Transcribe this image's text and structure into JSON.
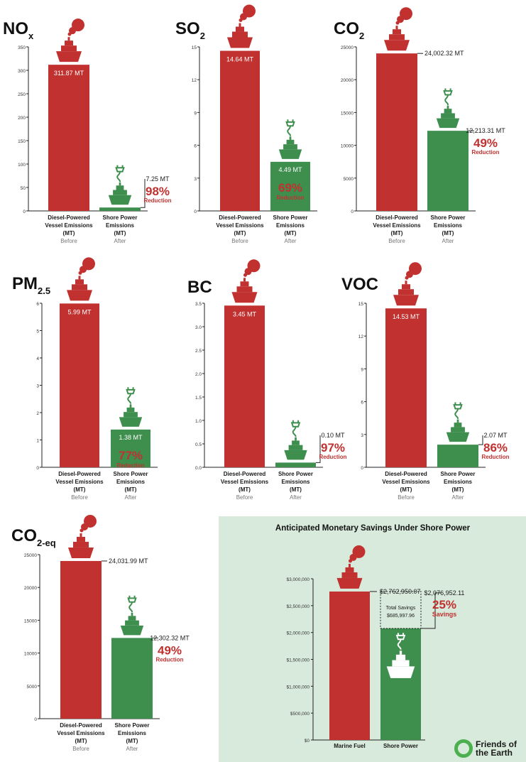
{
  "colors": {
    "diesel": "#c1312f",
    "shore": "#3e8e4e",
    "reduction_text": "#c1312f",
    "label": "#1a1a1a",
    "sublabel": "#777777",
    "panel_bg": "#d8eadb",
    "logo_green": "#4caf50"
  },
  "chart_data": [
    {
      "type": "bar",
      "title_main": "NO",
      "title_sub": "x",
      "categories": [
        "Diesel-Powered Vessel Emissions (MT)",
        "Shore Power Emissions (MT)"
      ],
      "category_lines": [
        [
          "Diesel-Powered",
          "Vessel Emissions",
          "(MT)"
        ],
        [
          "Shore Power",
          "Emissions",
          "(MT)"
        ]
      ],
      "sublabels": [
        "Before",
        "After"
      ],
      "values": [
        311.87,
        7.25
      ],
      "value_labels": [
        "311.87 MT",
        "7.25 MT"
      ],
      "reduction_pct": "98%",
      "reduction_label": "Reduction",
      "yticks": [
        0,
        50,
        100,
        150,
        200,
        250,
        300,
        350
      ],
      "tick_labels": [
        "0",
        "50",
        "100",
        "150",
        "200",
        "250",
        "300",
        "350"
      ],
      "ylim": [
        0,
        350
      ]
    },
    {
      "type": "bar",
      "title_main": "SO",
      "title_sub": "2",
      "categories": [
        "Diesel-Powered Vessel Emissions (MT)",
        "Shore Power Emissions (MT)"
      ],
      "category_lines": [
        [
          "Diesel-Powered",
          "Vessel Emissions",
          "(MT)"
        ],
        [
          "Shore Power",
          "Emissions",
          "(MT)"
        ]
      ],
      "sublabels": [
        "Before",
        "After"
      ],
      "values": [
        14.64,
        4.49
      ],
      "value_labels": [
        "14.64 MT",
        "4.49 MT"
      ],
      "reduction_pct": "69%",
      "reduction_label": "Reduction",
      "yticks": [
        0,
        3,
        6,
        9,
        12,
        15
      ],
      "tick_labels": [
        "0",
        "3",
        "6",
        "9",
        "12",
        "15"
      ],
      "ylim": [
        0,
        15
      ]
    },
    {
      "type": "bar",
      "title_main": "CO",
      "title_sub": "2",
      "categories": [
        "Diesel-Powered Vessel Emissions (MT)",
        "Shore Power Emissions (MT)"
      ],
      "category_lines": [
        [
          "Diesel-Powered",
          "Vessel Emissions",
          "(MT)"
        ],
        [
          "Shore Power",
          "Emissions",
          "(MT)"
        ]
      ],
      "sublabels": [
        "Before",
        "After"
      ],
      "values": [
        24002.32,
        12213.31
      ],
      "value_labels": [
        "24,002.32 MT",
        "12,213.31 MT"
      ],
      "reduction_pct": "49%",
      "reduction_label": "Reduction",
      "yticks": [
        0,
        5000,
        10000,
        15000,
        20000,
        25000
      ],
      "tick_labels": [
        "0",
        "5000",
        "10000",
        "15000",
        "20000",
        "25000"
      ],
      "ylim": [
        0,
        25000
      ]
    },
    {
      "type": "bar",
      "title_main": "PM",
      "title_sub": "2.5",
      "categories": [
        "Diesel-Powered Vessel Emissions (MT)",
        "Shore Power Emissions (MT)"
      ],
      "category_lines": [
        [
          "Diesel-Powered",
          "Vessel Emissions",
          "(MT)"
        ],
        [
          "Shore Power",
          "Emissions",
          "(MT)"
        ]
      ],
      "sublabels": [
        "Before",
        "After"
      ],
      "values": [
        5.99,
        1.38
      ],
      "value_labels": [
        "5.99 MT",
        "1.38 MT"
      ],
      "reduction_pct": "77%",
      "reduction_label": "Reduction",
      "yticks": [
        0,
        1,
        2,
        3,
        4,
        5,
        6
      ],
      "tick_labels": [
        "0",
        "1",
        "2",
        "3",
        "4",
        "5",
        "6"
      ],
      "ylim": [
        0,
        6
      ]
    },
    {
      "type": "bar",
      "title_main": "BC",
      "title_sub": "",
      "categories": [
        "Diesel-Powered Vessel Emissions (MT)",
        "Shore Power Emissions (MT)"
      ],
      "category_lines": [
        [
          "Diesel-Powered",
          "Vessel Emissions",
          "(MT)"
        ],
        [
          "Shore Power",
          "Emissions",
          "(MT)"
        ]
      ],
      "sublabels": [
        "Before",
        "After"
      ],
      "values": [
        3.45,
        0.1
      ],
      "value_labels": [
        "3.45 MT",
        "0.10 MT"
      ],
      "reduction_pct": "97%",
      "reduction_label": "Reduction",
      "yticks": [
        0,
        0.5,
        1,
        1.5,
        2,
        2.5,
        3,
        3.5
      ],
      "tick_labels": [
        "0.0",
        "0.5",
        "1.0",
        "1.5",
        "2.0",
        "2.5",
        "3.0",
        "3.5"
      ],
      "ylim": [
        0,
        3.5
      ]
    },
    {
      "type": "bar",
      "title_main": "VOC",
      "title_sub": "",
      "categories": [
        "Diesel-Powered Vessel Emissions (MT)",
        "Shore Power Emissions (MT)"
      ],
      "category_lines": [
        [
          "Diesel-Powered",
          "Vessel Emissions",
          "(MT)"
        ],
        [
          "Shore Power",
          "Emissions",
          "(MT)"
        ]
      ],
      "sublabels": [
        "Before",
        "After"
      ],
      "values": [
        14.53,
        2.07
      ],
      "value_labels": [
        "14.53 MT",
        "2.07 MT"
      ],
      "reduction_pct": "86%",
      "reduction_label": "Reduction",
      "yticks": [
        0,
        3,
        6,
        9,
        12,
        15
      ],
      "tick_labels": [
        "0",
        "3",
        "6",
        "9",
        "12",
        "15"
      ],
      "ylim": [
        0,
        15
      ]
    },
    {
      "type": "bar",
      "title_main": "CO",
      "title_sub": "2-eq",
      "categories": [
        "Diesel-Powered Vessel Emissions (MT)",
        "Shore Power Emissions (MT)"
      ],
      "category_lines": [
        [
          "Diesel-Powered",
          "Vessel Emissions",
          "(MT)"
        ],
        [
          "Shore Power",
          "Emissions",
          "(MT)"
        ]
      ],
      "sublabels": [
        "Before",
        "After"
      ],
      "values": [
        24031.99,
        12302.32
      ],
      "value_labels": [
        "24,031.99 MT",
        "12,302.32 MT"
      ],
      "reduction_pct": "49%",
      "reduction_label": "Reduction",
      "yticks": [
        0,
        5000,
        10000,
        15000,
        20000,
        25000
      ],
      "tick_labels": [
        "0",
        "5000",
        "10000",
        "15000",
        "20000",
        "25000"
      ],
      "ylim": [
        0,
        25000
      ]
    },
    {
      "type": "bar",
      "title": "Anticipated Monetary Savings Under Shore Power",
      "categories": [
        "Marine Fuel",
        "Shore Power"
      ],
      "values": [
        2762950.07,
        2076952.11
      ],
      "value_labels": [
        "$2,762,950.07",
        "$2,076,952.11"
      ],
      "total_savings_label": "Total Savings",
      "total_savings_value": "$685,997.96",
      "savings_pct": "25%",
      "savings_label": "Savings",
      "yticks": [
        0,
        500000,
        1000000,
        1500000,
        2000000,
        2500000,
        3000000
      ],
      "tick_labels": [
        "$0",
        "$500,000",
        "$1,000,000",
        "$1,500,000",
        "$2,000,000",
        "$2,500,000",
        "$3,000,000"
      ],
      "ylim": [
        0,
        3000000
      ]
    }
  ],
  "logo": {
    "line1": "Friends of",
    "line2": "the Earth"
  }
}
